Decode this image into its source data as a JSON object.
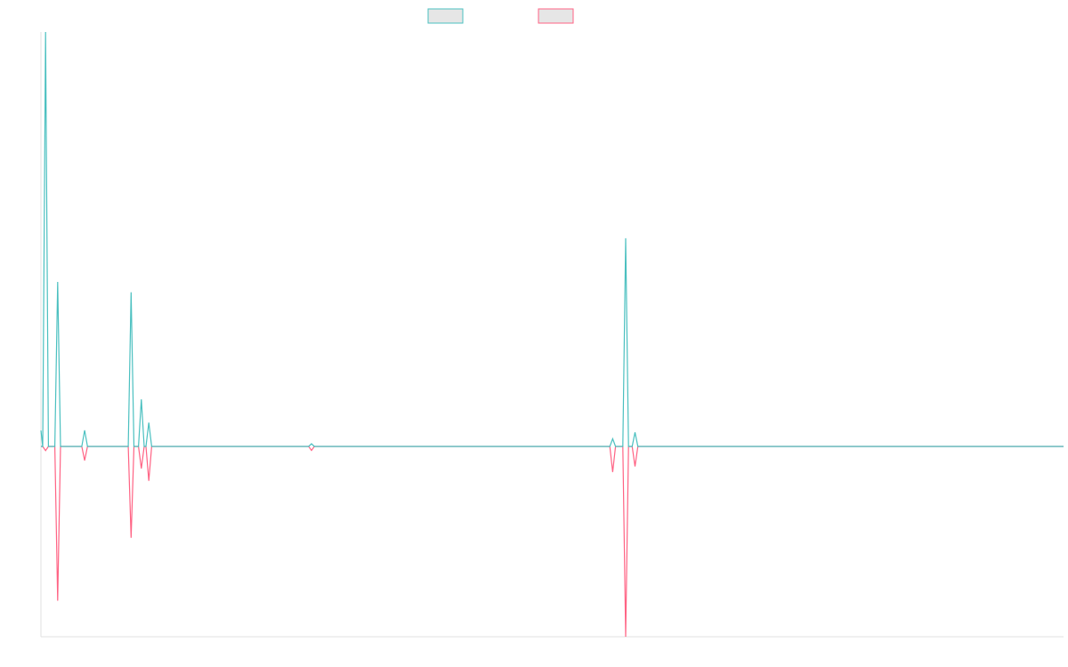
{
  "chart_data": {
    "type": "line",
    "title": "",
    "xlabel": "",
    "ylabel": "",
    "x_range": [
      0,
      110
    ],
    "y_range": [
      -100,
      100
    ],
    "grid": false,
    "legend_position": "top-center",
    "series": [
      {
        "color": "#4bc0c0",
        "fill": "#e6e6e6",
        "points": [
          [
            0,
            7.9
          ],
          [
            0.5,
            0
          ],
          [
            1,
            0
          ],
          [
            1.5,
            0
          ],
          [
            3,
            0
          ],
          [
            3.2,
            0
          ],
          [
            4.5,
            0
          ],
          [
            5.5,
            0
          ],
          [
            9.5,
            0
          ],
          [
            10,
            0
          ],
          [
            11,
            0
          ],
          [
            14.5,
            0
          ],
          [
            14.8,
            0
          ],
          [
            16.7,
            0
          ],
          [
            17,
            0
          ],
          [
            19.5,
            0
          ]
        ],
        "spikes": [
          {
            "x": 0.5,
            "y": 205.0
          },
          {
            "x": 1.8,
            "y": 81.4
          },
          {
            "x": 4.7,
            "y": 8.0
          },
          {
            "x": 9.7,
            "y": 76.3
          },
          {
            "x": 10.8,
            "y": 23.3
          },
          {
            "x": 11.6,
            "y": 11.8
          },
          {
            "x": 29.1,
            "y": 1.3
          },
          {
            "x": 61.5,
            "y": 3.8
          },
          {
            "x": 62.9,
            "y": 103.0
          },
          {
            "x": 63.9,
            "y": 7.0
          }
        ]
      },
      {
        "color": "#ff6384",
        "fill": "#e6e6e6",
        "spikes": [
          {
            "x": 0.5,
            "y": -2.1
          },
          {
            "x": 1.8,
            "y": -77.0
          },
          {
            "x": 4.7,
            "y": -7.0
          },
          {
            "x": 9.7,
            "y": -45.6
          },
          {
            "x": 10.8,
            "y": -11.0
          },
          {
            "x": 11.6,
            "y": -17.2
          },
          {
            "x": 29.1,
            "y": -2.0
          },
          {
            "x": 61.5,
            "y": -12.8
          },
          {
            "x": 62.9,
            "y": -95.0
          },
          {
            "x": 63.9,
            "y": -10.0
          }
        ]
      }
    ]
  }
}
